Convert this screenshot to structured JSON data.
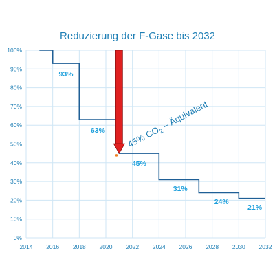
{
  "chart_data": {
    "type": "line",
    "title": "Reduzierung der F-Gase bis 2032",
    "xlabel": "",
    "ylabel": "",
    "x_ticks": [
      "2014",
      "2016",
      "2018",
      "2020",
      "2022",
      "2024",
      "2026",
      "2028",
      "2030",
      "2032"
    ],
    "y_ticks": [
      "0%",
      "10%",
      "20%",
      "30%",
      "40%",
      "50%",
      "60%",
      "70%",
      "80%",
      "90%",
      "100%"
    ],
    "xlim": [
      2014,
      2032
    ],
    "ylim": [
      0,
      100
    ],
    "grid": true,
    "step_series": {
      "x": [
        2015,
        2016,
        2016,
        2018,
        2018,
        2021,
        2021,
        2024,
        2024,
        2027,
        2027,
        2030,
        2030,
        2032
      ],
      "y": [
        100,
        100,
        93,
        93,
        63,
        63,
        45,
        45,
        31,
        31,
        24,
        24,
        21,
        21
      ]
    },
    "data_labels": [
      {
        "text": "93%",
        "x": 2017,
        "y": 86
      },
      {
        "text": "63%",
        "x": 2019.4,
        "y": 56
      },
      {
        "text": "45%",
        "x": 2022.5,
        "y": 38.5
      },
      {
        "text": "31%",
        "x": 2025.6,
        "y": 25
      },
      {
        "text": "24%",
        "x": 2028.7,
        "y": 18
      },
      {
        "text": "21%",
        "x": 2031.2,
        "y": 15
      }
    ],
    "annotation": {
      "arrow_from": {
        "x": 2021,
        "y": 100
      },
      "arrow_to": {
        "x": 2021,
        "y": 45
      },
      "marker": {
        "x": 2020.8,
        "y": 44
      },
      "text_main": "45% CO",
      "text_sub": "2",
      "text_tail": " – Äquivalent",
      "anchor": {
        "x": 2021.8,
        "y": 48
      }
    },
    "colors": {
      "line": "#1f5f96",
      "label": "#1fa0dc",
      "axis_text": "#1f7fb5",
      "grid": "#cfe6f5",
      "arrow": "#e02020",
      "arrow_edge": "#8a1010",
      "marker": "#f08020"
    }
  }
}
